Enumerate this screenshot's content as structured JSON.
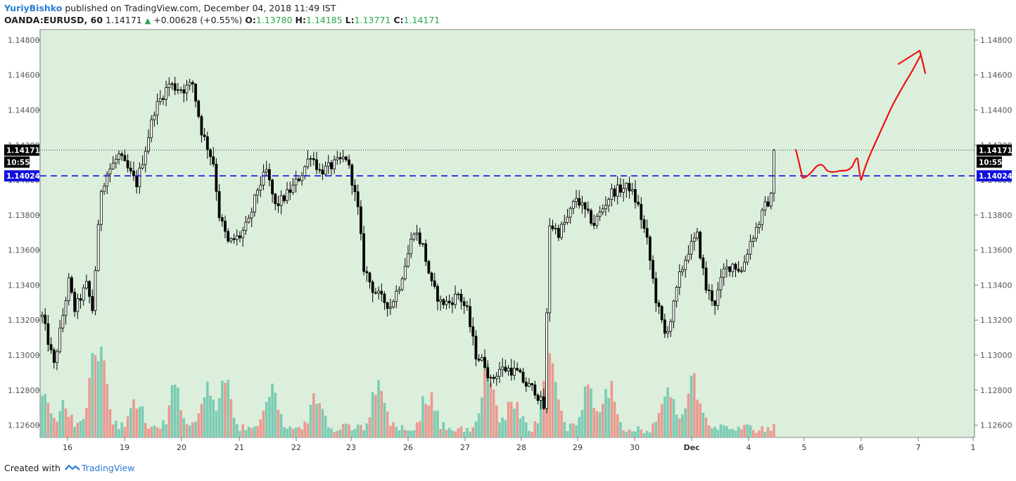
{
  "header": {
    "author": "YuriyBishko",
    "published_text": "published on TradingView.com, December 04, 2018 11:49 IST",
    "symbol": "OANDA:EURUSD, 60",
    "last_price": "1.14171",
    "change_arrow": "▲",
    "change": "+0.00628 (+0.55%)",
    "open_label": "O:",
    "open": "1.13780",
    "high_label": "H:",
    "high": "1.14185",
    "low_label": "L:",
    "low": "1.13771",
    "close_label": "C:",
    "close": "1.14171"
  },
  "footer": {
    "created_with": "Created with",
    "brand": "TradingView"
  },
  "colors": {
    "background": "#dcefdc",
    "candle": "#000000",
    "vol_up": "#7ccbb4",
    "vol_down": "#eb9a90",
    "hline": "#1111dd",
    "drawing": "#ee1111",
    "tag_bg": "#000000",
    "hline_tag_bg": "#1111dd"
  },
  "chart_data": {
    "type": "candlestick",
    "timeframe": "60",
    "y_ticks": [
      "1.12600",
      "1.12800",
      "1.13000",
      "1.13200",
      "1.13400",
      "1.13600",
      "1.13800",
      "1.14000",
      "1.14200",
      "1.14400",
      "1.14600",
      "1.14800"
    ],
    "ylim": [
      1.1253,
      1.1486
    ],
    "x_labels": [
      "16",
      "19",
      "20",
      "21",
      "22",
      "23",
      "26",
      "27",
      "28",
      "29",
      "30",
      "Dec",
      "4",
      "5",
      "6",
      "7",
      "1"
    ],
    "x_label_bold": "Dec",
    "last_price_tag": "1.14171",
    "countdown_tag": "10:55",
    "horizontal_line": 1.14024,
    "horizontal_line_tag": "1.14024",
    "anchors": [
      [
        0,
        1.1322
      ],
      [
        4,
        1.1294
      ],
      [
        9,
        1.1342
      ],
      [
        11,
        1.1326
      ],
      [
        15,
        1.134
      ],
      [
        17,
        1.1326
      ],
      [
        20,
        1.1395
      ],
      [
        22,
        1.1404
      ],
      [
        26,
        1.1414
      ],
      [
        29,
        1.1406
      ],
      [
        32,
        1.1398
      ],
      [
        35,
        1.1418
      ],
      [
        38,
        1.144
      ],
      [
        43,
        1.1455
      ],
      [
        45,
        1.1453
      ],
      [
        48,
        1.1452
      ],
      [
        51,
        1.1455
      ],
      [
        54,
        1.1428
      ],
      [
        58,
        1.141
      ],
      [
        60,
        1.138
      ],
      [
        63,
        1.1364
      ],
      [
        67,
        1.1368
      ],
      [
        70,
        1.1376
      ],
      [
        73,
        1.1395
      ],
      [
        76,
        1.1405
      ],
      [
        79,
        1.1385
      ],
      [
        82,
        1.139
      ],
      [
        85,
        1.1396
      ],
      [
        88,
        1.1404
      ],
      [
        91,
        1.1415
      ],
      [
        94,
        1.1405
      ],
      [
        97,
        1.1407
      ],
      [
        100,
        1.141
      ],
      [
        103,
        1.1413
      ],
      [
        105,
        1.14
      ],
      [
        107,
        1.1383
      ],
      [
        109,
        1.135
      ],
      [
        112,
        1.1338
      ],
      [
        115,
        1.1332
      ],
      [
        118,
        1.1328
      ],
      [
        121,
        1.134
      ],
      [
        124,
        1.1358
      ],
      [
        126,
        1.1372
      ],
      [
        129,
        1.1362
      ],
      [
        132,
        1.134
      ],
      [
        135,
        1.133
      ],
      [
        138,
        1.133
      ],
      [
        141,
        1.1335
      ],
      [
        144,
        1.1325
      ],
      [
        147,
        1.13
      ],
      [
        150,
        1.1295
      ],
      [
        152,
        1.1285
      ],
      [
        155,
        1.1292
      ],
      [
        158,
        1.1292
      ],
      [
        161,
        1.129
      ],
      [
        164,
        1.1283
      ],
      [
        167,
        1.128
      ],
      [
        170,
        1.127
      ],
      [
        172,
        1.1375
      ],
      [
        175,
        1.137
      ],
      [
        178,
        1.1378
      ],
      [
        181,
        1.139
      ],
      [
        184,
        1.1382
      ],
      [
        187,
        1.1375
      ],
      [
        190,
        1.1384
      ],
      [
        193,
        1.1393
      ],
      [
        196,
        1.1395
      ],
      [
        199,
        1.1396
      ],
      [
        202,
        1.1385
      ],
      [
        205,
        1.1365
      ],
      [
        208,
        1.1332
      ],
      [
        211,
        1.1312
      ],
      [
        213,
        1.132
      ],
      [
        216,
        1.1345
      ],
      [
        219,
        1.136
      ],
      [
        222,
        1.1368
      ],
      [
        225,
        1.1338
      ],
      [
        228,
        1.133
      ],
      [
        231,
        1.1348
      ],
      [
        234,
        1.1352
      ],
      [
        237,
        1.1348
      ],
      [
        240,
        1.1365
      ],
      [
        243,
        1.1376
      ],
      [
        245,
        1.1385
      ],
      [
        247,
        1.139
      ],
      [
        248,
        1.1417
      ]
    ],
    "volume_spikes": [
      [
        0,
        70
      ],
      [
        8,
        40
      ],
      [
        17,
        76
      ],
      [
        20,
        105
      ],
      [
        32,
        45
      ],
      [
        45,
        62
      ],
      [
        56,
        65
      ],
      [
        62,
        75
      ],
      [
        78,
        65
      ],
      [
        93,
        60
      ],
      [
        114,
        75
      ],
      [
        131,
        60
      ],
      [
        151,
        95
      ],
      [
        160,
        55
      ],
      [
        172,
        138
      ],
      [
        185,
        62
      ],
      [
        192,
        70
      ],
      [
        212,
        60
      ],
      [
        221,
        82
      ]
    ],
    "annotation": "hand-drawn red path projecting a dip to 1.14024 support then a rise toward 1.1472"
  }
}
